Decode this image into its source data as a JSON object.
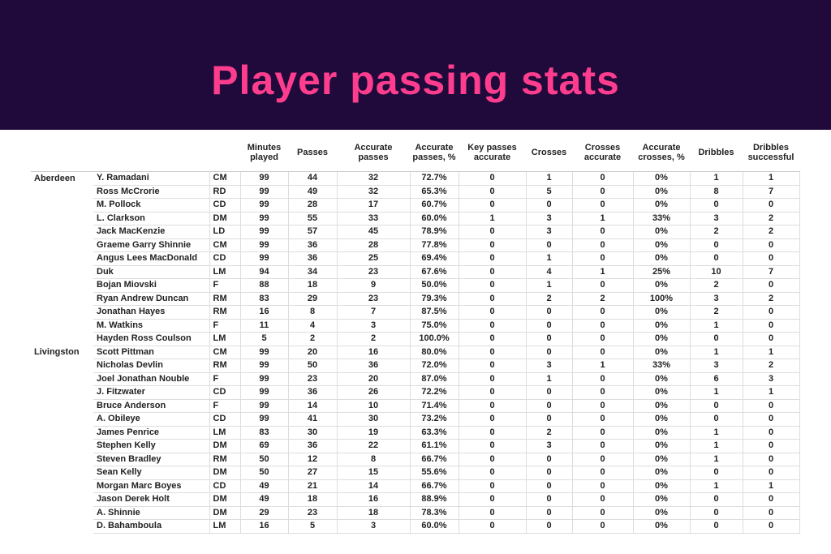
{
  "header": {
    "title": "Player passing stats"
  },
  "table": {
    "columns": [
      "Minutes played",
      "Passes",
      "Accurate passes",
      "Accurate passes, %",
      "Key passes accurate",
      "Crosses",
      "Crosses accurate",
      "Accurate crosses, %",
      "Dribbles",
      "Dribbles successful"
    ],
    "groups": [
      {
        "team": "Aberdeen",
        "rows": [
          [
            "Y. Ramadani",
            "CM",
            99,
            44,
            32,
            "72.7%",
            0,
            1,
            0,
            "0%",
            1,
            1
          ],
          [
            "Ross McCrorie",
            "RD",
            99,
            49,
            32,
            "65.3%",
            0,
            5,
            0,
            "0%",
            8,
            7
          ],
          [
            "M. Pollock",
            "CD",
            99,
            28,
            17,
            "60.7%",
            0,
            0,
            0,
            "0%",
            0,
            0
          ],
          [
            "L. Clarkson",
            "DM",
            99,
            55,
            33,
            "60.0%",
            1,
            3,
            1,
            "33%",
            3,
            2
          ],
          [
            "Jack MacKenzie",
            "LD",
            99,
            57,
            45,
            "78.9%",
            0,
            3,
            0,
            "0%",
            2,
            2
          ],
          [
            "Graeme Garry Shinnie",
            "CM",
            99,
            36,
            28,
            "77.8%",
            0,
            0,
            0,
            "0%",
            0,
            0
          ],
          [
            "Angus Lees MacDonald",
            "CD",
            99,
            36,
            25,
            "69.4%",
            0,
            1,
            0,
            "0%",
            0,
            0
          ],
          [
            "Duk",
            "LM",
            94,
            34,
            23,
            "67.6%",
            0,
            4,
            1,
            "25%",
            10,
            7
          ],
          [
            "Bojan Miovski",
            "F",
            88,
            18,
            9,
            "50.0%",
            0,
            1,
            0,
            "0%",
            2,
            0
          ],
          [
            "Ryan Andrew Duncan",
            "RM",
            83,
            29,
            23,
            "79.3%",
            0,
            2,
            2,
            "100%",
            3,
            2
          ],
          [
            "Jonathan Hayes",
            "RM",
            16,
            8,
            7,
            "87.5%",
            0,
            0,
            0,
            "0%",
            2,
            0
          ],
          [
            "M. Watkins",
            "F",
            11,
            4,
            3,
            "75.0%",
            0,
            0,
            0,
            "0%",
            1,
            0
          ],
          [
            "Hayden Ross Coulson",
            "LM",
            5,
            2,
            2,
            "100.0%",
            0,
            0,
            0,
            "0%",
            0,
            0
          ]
        ]
      },
      {
        "team": "Livingston",
        "rows": [
          [
            "Scott Pittman",
            "CM",
            99,
            20,
            16,
            "80.0%",
            0,
            0,
            0,
            "0%",
            1,
            1
          ],
          [
            "Nicholas Devlin",
            "RM",
            99,
            50,
            36,
            "72.0%",
            0,
            3,
            1,
            "33%",
            3,
            2
          ],
          [
            "Joel Jonathan Nouble",
            "F",
            99,
            23,
            20,
            "87.0%",
            0,
            1,
            0,
            "0%",
            6,
            3
          ],
          [
            "J. Fitzwater",
            "CD",
            99,
            36,
            26,
            "72.2%",
            0,
            0,
            0,
            "0%",
            1,
            1
          ],
          [
            "Bruce Anderson",
            "F",
            99,
            14,
            10,
            "71.4%",
            0,
            0,
            0,
            "0%",
            0,
            0
          ],
          [
            "A. Obileye",
            "CD",
            99,
            41,
            30,
            "73.2%",
            0,
            0,
            0,
            "0%",
            0,
            0
          ],
          [
            "James Penrice",
            "LM",
            83,
            30,
            19,
            "63.3%",
            0,
            2,
            0,
            "0%",
            1,
            0
          ],
          [
            "Stephen Kelly",
            "DM",
            69,
            36,
            22,
            "61.1%",
            0,
            3,
            0,
            "0%",
            1,
            0
          ],
          [
            "Steven Bradley",
            "RM",
            50,
            12,
            8,
            "66.7%",
            0,
            0,
            0,
            "0%",
            1,
            0
          ],
          [
            "Sean Kelly",
            "DM",
            50,
            27,
            15,
            "55.6%",
            0,
            0,
            0,
            "0%",
            0,
            0
          ],
          [
            "Morgan Marc Boyes",
            "CD",
            49,
            21,
            14,
            "66.7%",
            0,
            0,
            0,
            "0%",
            1,
            1
          ],
          [
            "Jason Derek Holt",
            "DM",
            49,
            18,
            16,
            "88.9%",
            0,
            0,
            0,
            "0%",
            0,
            0
          ],
          [
            "A. Shinnie",
            "DM",
            29,
            23,
            18,
            "78.3%",
            0,
            0,
            0,
            "0%",
            0,
            0
          ],
          [
            "D. Bahamboula",
            "LM",
            16,
            5,
            3,
            "60.0%",
            0,
            0,
            0,
            "0%",
            0,
            0
          ]
        ]
      }
    ]
  }
}
